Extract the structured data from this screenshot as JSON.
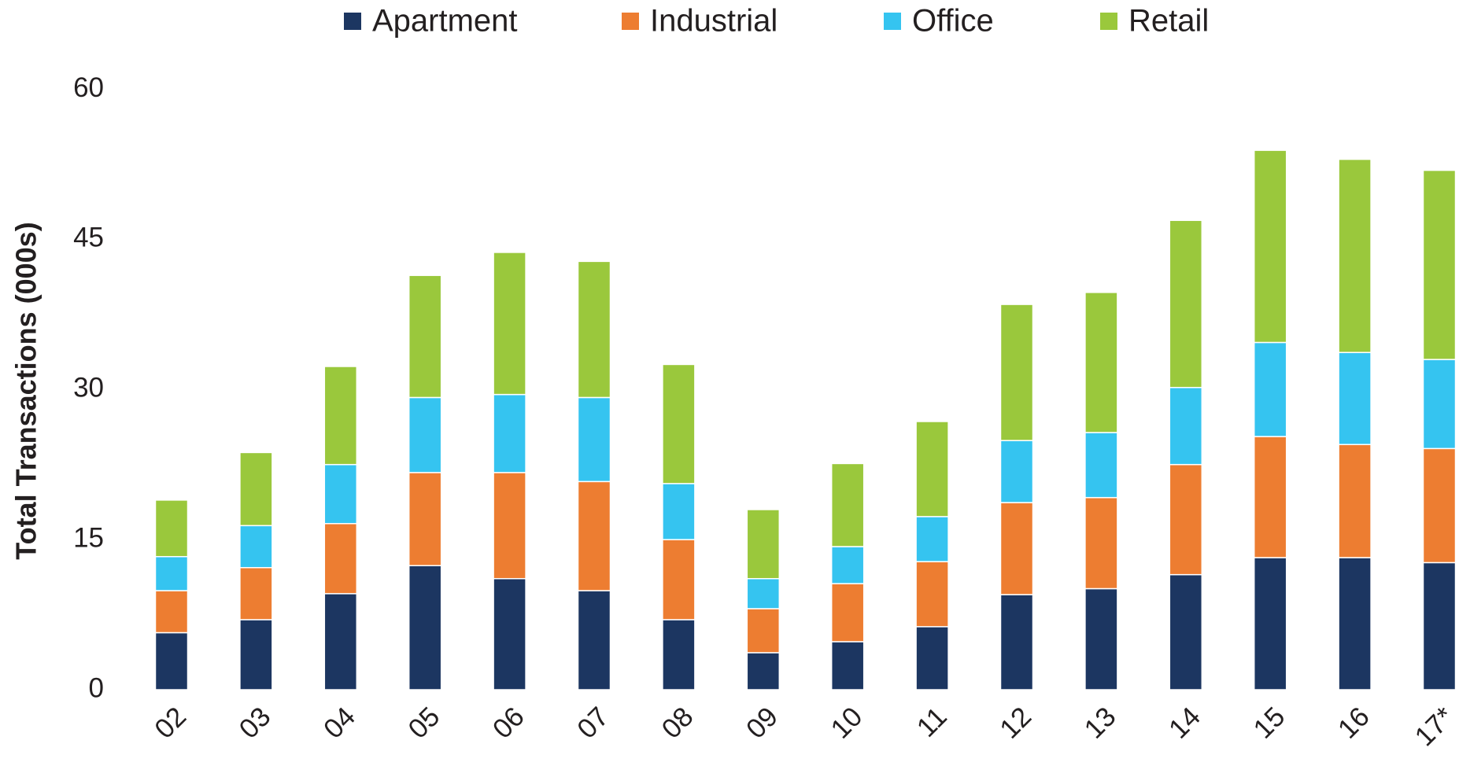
{
  "chart_data": {
    "type": "bar",
    "stacked": true,
    "y_label": "Total Transactions (000s)",
    "categories": [
      "02",
      "03",
      "04",
      "05",
      "06",
      "07",
      "08",
      "09",
      "10",
      "11",
      "12",
      "13",
      "14",
      "15",
      "16",
      "17*"
    ],
    "series": [
      {
        "name": "Apartment",
        "color": "#1c3661",
        "values": [
          5.7,
          7.0,
          9.6,
          12.4,
          11.1,
          9.9,
          7.0,
          3.7,
          4.8,
          6.3,
          9.5,
          10.1,
          11.5,
          13.2,
          13.2,
          12.7
        ]
      },
      {
        "name": "Industrial",
        "color": "#ed7d31",
        "values": [
          4.2,
          5.2,
          7.0,
          9.3,
          10.6,
          10.9,
          8.0,
          4.4,
          5.8,
          6.5,
          9.2,
          9.1,
          11.0,
          12.1,
          11.3,
          11.4
        ]
      },
      {
        "name": "Office",
        "color": "#35c4f0",
        "values": [
          3.4,
          4.2,
          5.9,
          7.5,
          7.8,
          8.4,
          5.6,
          3.0,
          3.7,
          4.5,
          6.2,
          6.5,
          7.7,
          9.4,
          9.2,
          8.9
        ]
      },
      {
        "name": "Retail",
        "color": "#9ac83c",
        "values": [
          5.65,
          7.3,
          9.8,
          12.2,
          14.2,
          13.6,
          11.9,
          6.9,
          8.3,
          9.5,
          13.6,
          14.0,
          16.7,
          19.2,
          19.3,
          18.9
        ]
      }
    ],
    "ylim": [
      0,
      60
    ],
    "yticks": [
      0,
      15,
      30,
      45,
      60
    ],
    "grid": false
  }
}
